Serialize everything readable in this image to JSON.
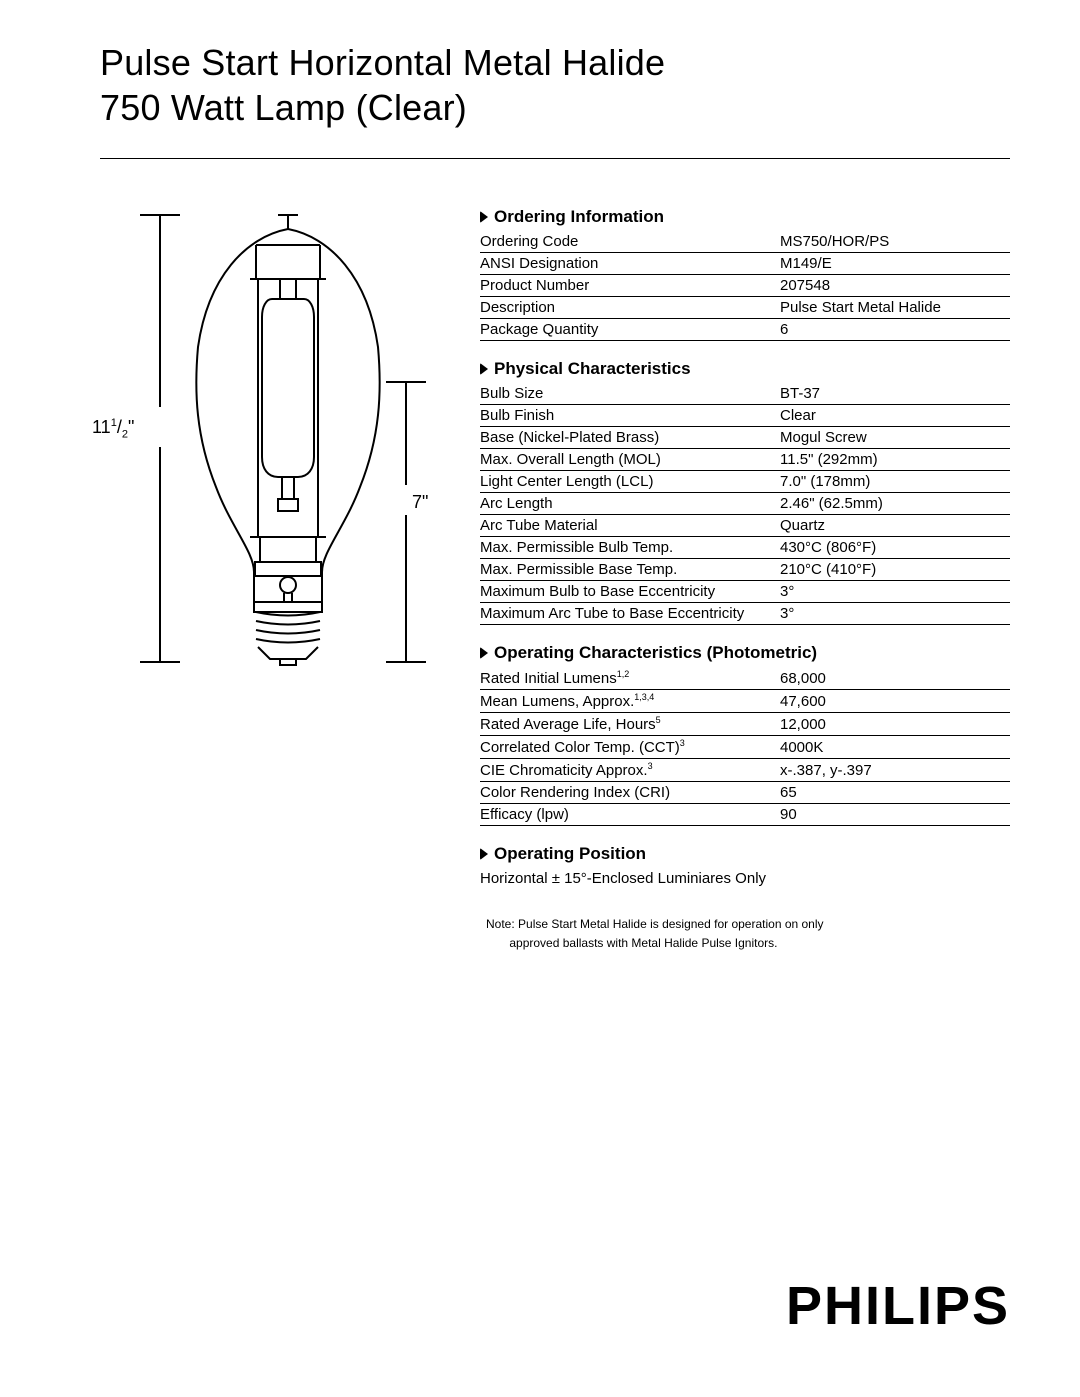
{
  "title_line1": "Pulse Start Horizontal Metal Halide",
  "title_line2": "750 Watt Lamp (Clear)",
  "diagram": {
    "dim_left_int": "11",
    "dim_left_num": "1",
    "dim_left_slash": "/",
    "dim_left_den": "2",
    "dim_left_inch": "\"",
    "dim_right": "7\"",
    "stroke": "#000000",
    "stroke_width": 2
  },
  "sections": {
    "ordering": {
      "heading": "Ordering Information",
      "rows": [
        {
          "label": "Ordering Code",
          "value": "MS750/HOR/PS"
        },
        {
          "label": "ANSI Designation",
          "value": "M149/E"
        },
        {
          "label": "Product Number",
          "value": "207548"
        },
        {
          "label": "Description",
          "value": "Pulse Start Metal Halide"
        },
        {
          "label": "Package Quantity",
          "value": "6"
        }
      ]
    },
    "physical": {
      "heading": "Physical Characteristics",
      "rows": [
        {
          "label": "Bulb Size",
          "value": "BT-37"
        },
        {
          "label": "Bulb Finish",
          "value": "Clear"
        },
        {
          "label": "Base (Nickel-Plated Brass)",
          "value": "Mogul Screw"
        },
        {
          "label": "Max. Overall Length (MOL)",
          "value": "11.5\" (292mm)"
        },
        {
          "label": "Light Center Length (LCL)",
          "value": "7.0\" (178mm)"
        },
        {
          "label": "Arc Length",
          "value": "2.46\" (62.5mm)"
        },
        {
          "label": "Arc Tube Material",
          "value": "Quartz"
        },
        {
          "label": "Max. Permissible Bulb Temp.",
          "value": "430°C (806°F)"
        },
        {
          "label": "Max. Permissible Base Temp.",
          "value": "210°C (410°F)"
        },
        {
          "label": "Maximum Bulb to Base Eccentricity",
          "value": "3°"
        },
        {
          "label": "Maximum Arc Tube to Base Eccentricity",
          "value": "3°"
        }
      ]
    },
    "operating": {
      "heading": "Operating Characteristics (Photometric)",
      "rows": [
        {
          "label": "Rated Initial Lumens",
          "sup": "1,2",
          "value": "68,000"
        },
        {
          "label": "Mean Lumens, Approx.",
          "sup": "1,3,4",
          "value": "47,600"
        },
        {
          "label": "Rated Average Life, Hours",
          "sup": "5",
          "value": "12,000"
        },
        {
          "label": "Correlated Color Temp. (CCT)",
          "sup": "3",
          "value": "4000K"
        },
        {
          "label": "CIE Chromaticity Approx.",
          "sup": "3",
          "value": "x-.387, y-.397"
        },
        {
          "label": "Color Rendering Index (CRI)",
          "value": "65"
        },
        {
          "label": "Efficacy (lpw)",
          "value": "90"
        }
      ]
    },
    "position": {
      "heading": "Operating Position",
      "text": "Horizontal ± 15°-Enclosed Luminiares Only"
    }
  },
  "note_line1": "Note: Pulse Start Metal Halide is designed for operation on only",
  "note_line2": "approved ballasts with Metal Halide Pulse Ignitors.",
  "logo": "PHILIPS",
  "colors": {
    "text": "#000000",
    "background": "#ffffff",
    "rule": "#000000"
  }
}
